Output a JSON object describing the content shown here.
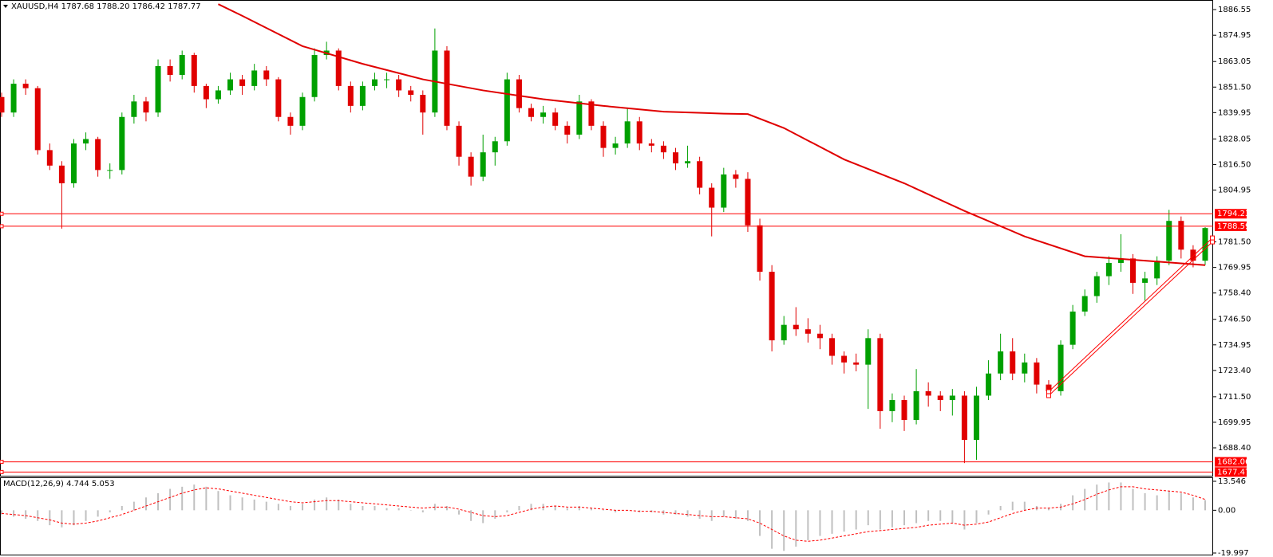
{
  "chart_data": {
    "type": "candlestick",
    "header": "XAUUSD,H4  1787.68 1788.20 1786.42 1787.77",
    "up_color": "#00a000",
    "down_color": "#e00000",
    "ylim": [
      1676.15,
      1890.87
    ],
    "yticks": [
      1886.55,
      1874.95,
      1863.05,
      {
        "value": 1851.5,
        "label": "1851.50"
      },
      1839.95,
      1828.05,
      {
        "value": 1816.5,
        "label": "1816.50"
      },
      1804.95,
      {
        "value": 1781.5,
        "label": "1781.50"
      },
      1769.95,
      {
        "value": 1758.4,
        "label": "1758.40"
      },
      {
        "value": 1746.5,
        "label": "1746.50"
      },
      1734.95,
      {
        "value": 1723.4,
        "label": "1723.40"
      },
      {
        "value": 1711.5,
        "label": "1711.50"
      },
      1699.95,
      {
        "value": 1688.4,
        "label": "1688.40"
      }
    ],
    "candles": [
      [
        1847,
        1849,
        1838,
        1840
      ],
      [
        1840,
        1855,
        1838,
        1853
      ],
      [
        1853,
        1855,
        1848,
        1851
      ],
      [
        1851,
        1852,
        1821,
        1823
      ],
      [
        1823,
        1826,
        1814,
        1816
      ],
      [
        1816,
        1818,
        1787.5,
        1808
      ],
      [
        1808,
        1828,
        1806,
        1826
      ],
      [
        1826,
        1831,
        1823,
        1828
      ],
      [
        1828,
        1829,
        1811,
        1814
      ],
      [
        1814,
        1817,
        1810,
        1814
      ],
      [
        1814,
        1840,
        1812,
        1838
      ],
      [
        1838,
        1848,
        1835,
        1845
      ],
      [
        1845,
        1847,
        1836,
        1840
      ],
      [
        1840,
        1864,
        1838,
        1861
      ],
      [
        1861,
        1864,
        1854,
        1857
      ],
      [
        1857,
        1868,
        1855,
        1866
      ],
      [
        1866,
        1867,
        1849,
        1852
      ],
      [
        1852,
        1853,
        1842,
        1846
      ],
      [
        1846,
        1852,
        1844,
        1850
      ],
      [
        1850,
        1858,
        1848,
        1855
      ],
      [
        1855,
        1857,
        1848,
        1852
      ],
      [
        1852,
        1862,
        1850,
        1859
      ],
      [
        1859,
        1861,
        1852,
        1855
      ],
      [
        1855,
        1856,
        1836,
        1838
      ],
      [
        1838,
        1840,
        1830,
        1834
      ],
      [
        1834,
        1849,
        1832,
        1847
      ],
      [
        1847,
        1869,
        1845,
        1866
      ],
      [
        1866,
        1872,
        1864,
        1868
      ],
      [
        1868,
        1869,
        1850,
        1852
      ],
      [
        1852,
        1854,
        1840,
        1843
      ],
      [
        1843,
        1854,
        1841,
        1852
      ],
      [
        1852,
        1858,
        1850,
        1855
      ],
      [
        1855,
        1858,
        1851,
        1855
      ],
      [
        1855,
        1857,
        1847,
        1850
      ],
      [
        1850,
        1852,
        1845,
        1848
      ],
      [
        1848,
        1850,
        1830,
        1840
      ],
      [
        1840,
        1878,
        1838,
        1868
      ],
      [
        1868,
        1870,
        1832,
        1834
      ],
      [
        1834,
        1836,
        1816,
        1820
      ],
      [
        1820,
        1822,
        1807,
        1811
      ],
      [
        1811,
        1830,
        1809,
        1822
      ],
      [
        1822,
        1829,
        1816,
        1827
      ],
      [
        1827,
        1858,
        1825,
        1855
      ],
      [
        1855,
        1857,
        1840,
        1842
      ],
      [
        1842,
        1844,
        1836,
        1838
      ],
      [
        1838,
        1843,
        1835,
        1840
      ],
      [
        1840,
        1842,
        1832,
        1834
      ],
      [
        1834,
        1836,
        1826,
        1830
      ],
      [
        1830,
        1848,
        1828,
        1845
      ],
      [
        1845,
        1846,
        1832,
        1834
      ],
      [
        1834,
        1836,
        1820,
        1824
      ],
      [
        1824,
        1829,
        1821,
        1826
      ],
      [
        1826,
        1842,
        1824,
        1836
      ],
      [
        1836,
        1838,
        1823,
        1826
      ],
      [
        1826,
        1828,
        1822,
        1825
      ],
      [
        1825,
        1827,
        1819,
        1822
      ],
      [
        1822,
        1824,
        1814,
        1817
      ],
      [
        1817,
        1825,
        1815,
        1818
      ],
      [
        1818,
        1820,
        1803,
        1806
      ],
      [
        1806,
        1808,
        1784,
        1797
      ],
      [
        1797,
        1815,
        1795,
        1812
      ],
      [
        1812,
        1814,
        1806,
        1810
      ],
      [
        1810,
        1813,
        1786,
        1789
      ],
      [
        1789,
        1792,
        1764,
        1768
      ],
      [
        1768,
        1771,
        1732,
        1737
      ],
      [
        1737,
        1748,
        1735,
        1744
      ],
      [
        1744,
        1752,
        1739,
        1742
      ],
      [
        1742,
        1747,
        1736,
        1740
      ],
      [
        1740,
        1744,
        1733,
        1738
      ],
      [
        1738,
        1740,
        1726,
        1730
      ],
      [
        1730,
        1732,
        1722,
        1727
      ],
      [
        1727,
        1731,
        1723,
        1726
      ],
      [
        1726,
        1742,
        1706,
        1738
      ],
      [
        1738,
        1740,
        1697,
        1705
      ],
      [
        1705,
        1713,
        1700,
        1710
      ],
      [
        1710,
        1712,
        1696,
        1701
      ],
      [
        1701,
        1724,
        1699,
        1714
      ],
      [
        1714,
        1718,
        1707,
        1712
      ],
      [
        1712,
        1714,
        1705,
        1710
      ],
      [
        1710,
        1715,
        1703,
        1712
      ],
      [
        1712,
        1714,
        1681.5,
        1692
      ],
      [
        1692,
        1716,
        1683,
        1712
      ],
      [
        1712,
        1728,
        1710,
        1722
      ],
      [
        1722,
        1740,
        1719,
        1732
      ],
      [
        1732,
        1738,
        1719,
        1722
      ],
      [
        1722,
        1731,
        1718,
        1727
      ],
      [
        1727,
        1729,
        1713,
        1717
      ],
      [
        1717,
        1719,
        1711,
        1714
      ],
      [
        1714,
        1737,
        1712,
        1735
      ],
      [
        1735,
        1753,
        1733,
        1750
      ],
      [
        1750,
        1760,
        1748,
        1757
      ],
      [
        1757,
        1768,
        1754,
        1766
      ],
      [
        1766,
        1775,
        1762,
        1772
      ],
      [
        1772,
        1785,
        1768,
        1774
      ],
      [
        1774,
        1776,
        1758,
        1763
      ],
      [
        1763,
        1768,
        1755,
        1765
      ],
      [
        1765,
        1775,
        1762,
        1773
      ],
      [
        1773,
        1796,
        1771,
        1791
      ],
      [
        1791,
        1793,
        1774,
        1778
      ],
      [
        1778,
        1780,
        1770,
        1773
      ],
      [
        1773,
        1788.2,
        1771,
        1787.77
      ]
    ],
    "ma": {
      "color": "#e00000",
      "x": [
        18,
        20,
        25,
        30,
        35,
        40,
        45,
        50,
        55,
        60,
        62,
        65,
        70,
        75,
        80,
        85,
        90,
        95,
        100
      ],
      "values": [
        1889,
        1883.7,
        1870,
        1862,
        1855,
        1850,
        1846,
        1843,
        1840.4,
        1839.5,
        1839.3,
        1833,
        1818.8,
        1808,
        1795.5,
        1784,
        1775,
        1773,
        1771
      ]
    },
    "trendlines": [
      {
        "x": [
          87,
          100.6
        ],
        "y": [
          1712,
          1781.5
        ]
      },
      {
        "x": [
          87,
          100.6
        ],
        "y": [
          1713.8,
          1783.3
        ]
      }
    ],
    "levels": [
      1794.23,
      1788.59,
      1682.06,
      1677.47
    ],
    "level_color": "#ff0000",
    "macd": {
      "label": "MACD(12,26,9) 4.744 5.053",
      "ylim": [
        -19.997,
        13.546
      ],
      "yticks": [
        13.546,
        {
          "value": 0,
          "label": "0.00"
        },
        -19.997
      ],
      "hist_color": "#c0c0c0",
      "signal_color": "#ff0000",
      "hist": [
        -2,
        -3,
        -4,
        -5,
        -7,
        -8,
        -7,
        -5,
        -3,
        -1,
        2,
        4,
        6,
        8,
        10,
        11,
        12,
        11,
        9,
        7,
        6,
        5,
        4,
        3,
        2,
        3,
        5,
        6,
        5,
        3,
        2,
        2,
        1,
        1,
        0,
        -1,
        3,
        2,
        -2,
        -5,
        -6,
        -4,
        -1,
        2,
        3,
        3,
        2,
        1,
        2,
        1,
        0,
        -1,
        0,
        -1,
        -1,
        -2,
        -2,
        -3,
        -4,
        -5,
        -3,
        -4,
        -5,
        -12,
        -18,
        -19,
        -17,
        -14,
        -12,
        -11,
        -10,
        -9,
        -7,
        -9,
        -8,
        -7,
        -6,
        -5,
        -5,
        -6,
        -9,
        -6,
        -2,
        2,
        4,
        4,
        2,
        1,
        3,
        7,
        10,
        12,
        13,
        13,
        10,
        8,
        7,
        9,
        8,
        6,
        4.744
      ],
      "signal": [
        -1.5,
        -2,
        -2.5,
        -3.5,
        -4.5,
        -6,
        -6.5,
        -6,
        -5,
        -3.5,
        -2,
        0,
        2,
        4,
        6,
        8,
        9.5,
        10.5,
        10,
        9,
        8,
        7,
        6,
        5,
        4,
        3.5,
        4,
        4.5,
        4.5,
        4,
        3.5,
        3,
        2.5,
        2,
        1.5,
        1,
        1.5,
        1.5,
        0.5,
        -1,
        -2.5,
        -3,
        -2.5,
        -1,
        0.5,
        1.5,
        2,
        1.5,
        1.5,
        1,
        0.5,
        0,
        0,
        -0.5,
        -0.5,
        -1,
        -1.5,
        -2,
        -2.5,
        -3,
        -3,
        -3.5,
        -4,
        -6,
        -9,
        -12,
        -14,
        -14.5,
        -14,
        -13,
        -12,
        -11,
        -10,
        -9.5,
        -9,
        -8.5,
        -8,
        -7,
        -6.5,
        -6,
        -7,
        -6.5,
        -5.5,
        -3.5,
        -1.5,
        0,
        1,
        1,
        1.5,
        3,
        5,
        7.5,
        9.5,
        11,
        11,
        10,
        9.5,
        9,
        8.5,
        7,
        5.053
      ]
    }
  }
}
